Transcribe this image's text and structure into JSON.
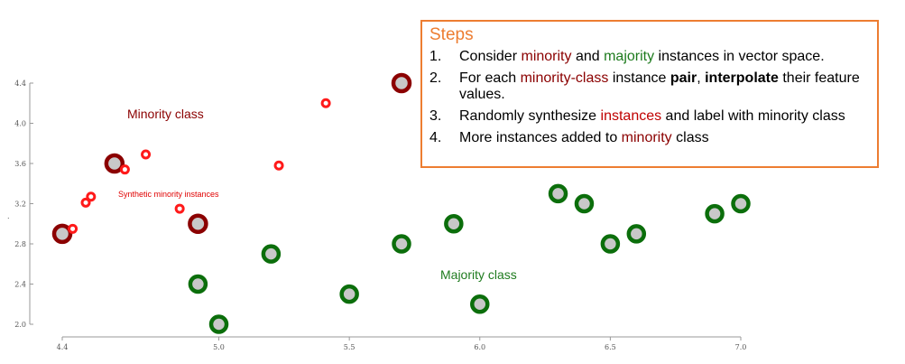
{
  "chart_data": {
    "type": "scatter",
    "xlim": [
      4.4,
      7.0
    ],
    "ylim": [
      2.0,
      4.4
    ],
    "x_ticks": [
      "4.4",
      "5.0",
      "5.5",
      "6.0",
      "6.5",
      "7.0"
    ],
    "y_ticks": [
      "2.0",
      "2.4",
      "2.8",
      "3.2",
      "3.6",
      "4.0",
      "4.4"
    ],
    "y_axis_marker": ".",
    "grid": false,
    "series": [
      {
        "name": "Minority class",
        "color": "#8b0000",
        "points": [
          [
            4.4,
            2.9
          ],
          [
            4.6,
            3.6
          ],
          [
            4.92,
            3.0
          ],
          [
            5.7,
            4.4
          ]
        ]
      },
      {
        "name": "Synthetic minority instances",
        "color": "#ff1a1a",
        "points": [
          [
            4.44,
            2.95
          ],
          [
            4.49,
            3.21
          ],
          [
            4.51,
            3.27
          ],
          [
            4.64,
            3.54
          ],
          [
            4.72,
            3.69
          ],
          [
            4.85,
            3.15
          ],
          [
            5.23,
            3.58
          ],
          [
            5.41,
            4.2
          ]
        ]
      },
      {
        "name": "Majority class",
        "color": "#0b6e0b",
        "points": [
          [
            4.92,
            2.4
          ],
          [
            5.0,
            2.0
          ],
          [
            5.2,
            2.7
          ],
          [
            5.5,
            2.3
          ],
          [
            5.7,
            2.8
          ],
          [
            5.9,
            3.0
          ],
          [
            6.0,
            2.2
          ],
          [
            6.3,
            3.3
          ],
          [
            6.4,
            3.2
          ],
          [
            6.5,
            2.8
          ],
          [
            6.6,
            2.9
          ],
          [
            6.9,
            3.1
          ],
          [
            7.0,
            3.2
          ]
        ]
      }
    ],
    "annotations": {
      "minority_label": "Minority class",
      "synthetic_label": "Synthetic minority instances",
      "majority_label": "Majority class"
    }
  },
  "steps": {
    "title": "Steps",
    "items": [
      {
        "num": "1.",
        "parts": [
          {
            "text": "Consider ",
            "style": "normal"
          },
          {
            "text": "minority",
            "style": "darkred"
          },
          {
            "text": " and ",
            "style": "normal"
          },
          {
            "text": "majority",
            "style": "green"
          },
          {
            "text": " instances in vector space.",
            "style": "normal"
          }
        ]
      },
      {
        "num": "2.",
        "parts": [
          {
            "text": "For each ",
            "style": "normal"
          },
          {
            "text": "minority-class",
            "style": "darkred"
          },
          {
            "text": " instance ",
            "style": "normal"
          },
          {
            "text": "pair",
            "style": "bold"
          },
          {
            "text": ", ",
            "style": "normal"
          },
          {
            "text": "interpolate",
            "style": "bold"
          },
          {
            "text": " their feature values.",
            "style": "normal"
          }
        ]
      },
      {
        "num": "3.",
        "parts": [
          {
            "text": "Randomly synthesize ",
            "style": "normal"
          },
          {
            "text": "instances",
            "style": "red"
          },
          {
            "text": " and label with minority class",
            "style": "normal"
          }
        ]
      },
      {
        "num": "4.",
        "parts": [
          {
            "text": "More instances added to ",
            "style": "normal"
          },
          {
            "text": "minority",
            "style": "darkred"
          },
          {
            "text": " class",
            "style": "normal"
          }
        ]
      }
    ]
  }
}
